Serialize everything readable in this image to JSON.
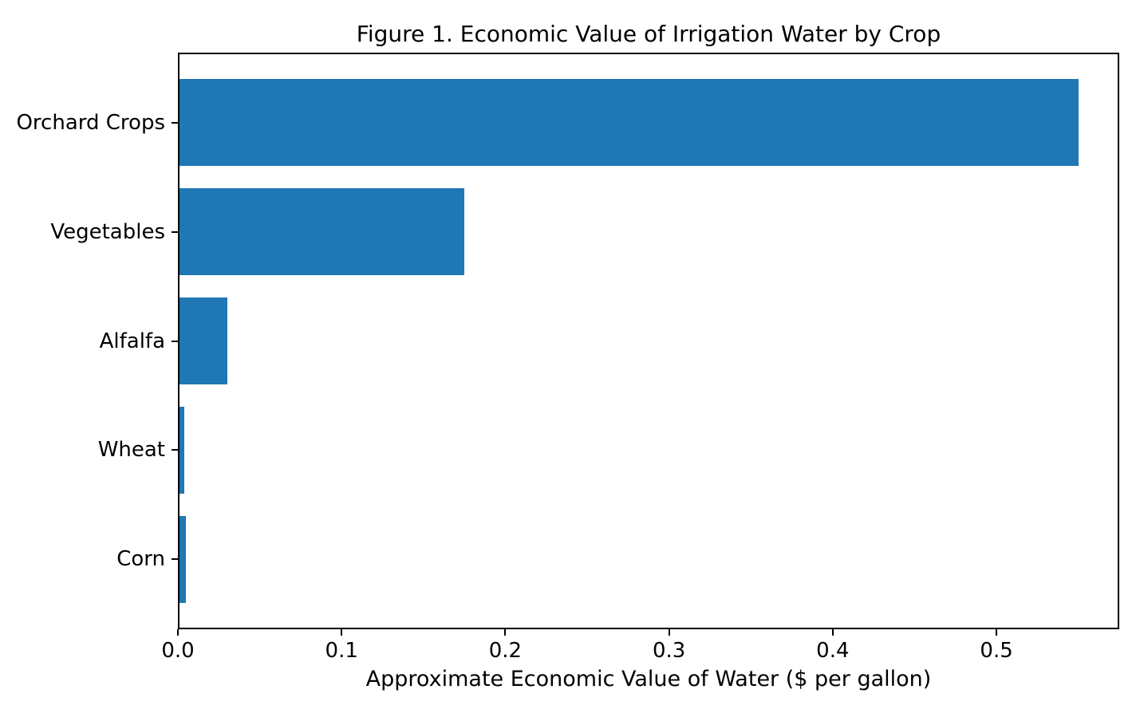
{
  "chart_data": {
    "type": "bar",
    "orientation": "horizontal",
    "title": "Figure 1. Economic Value of Irrigation Water by Crop",
    "xlabel": "Approximate Economic Value of Water ($ per gallon)",
    "ylabel": "",
    "categories": [
      "Orchard Crops",
      "Vegetables",
      "Alfalfa",
      "Wheat",
      "Corn"
    ],
    "values": [
      0.55,
      0.175,
      0.03,
      0.004,
      0.005
    ],
    "xlim": [
      0,
      0.575
    ],
    "x_ticks": [
      0.0,
      0.1,
      0.2,
      0.3,
      0.4,
      0.5
    ],
    "x_tick_labels": [
      "0.0",
      "0.1",
      "0.2",
      "0.3",
      "0.4",
      "0.5"
    ],
    "bar_color": "#1f77b4",
    "text_color": "#000000",
    "grid": false,
    "legend": null
  }
}
